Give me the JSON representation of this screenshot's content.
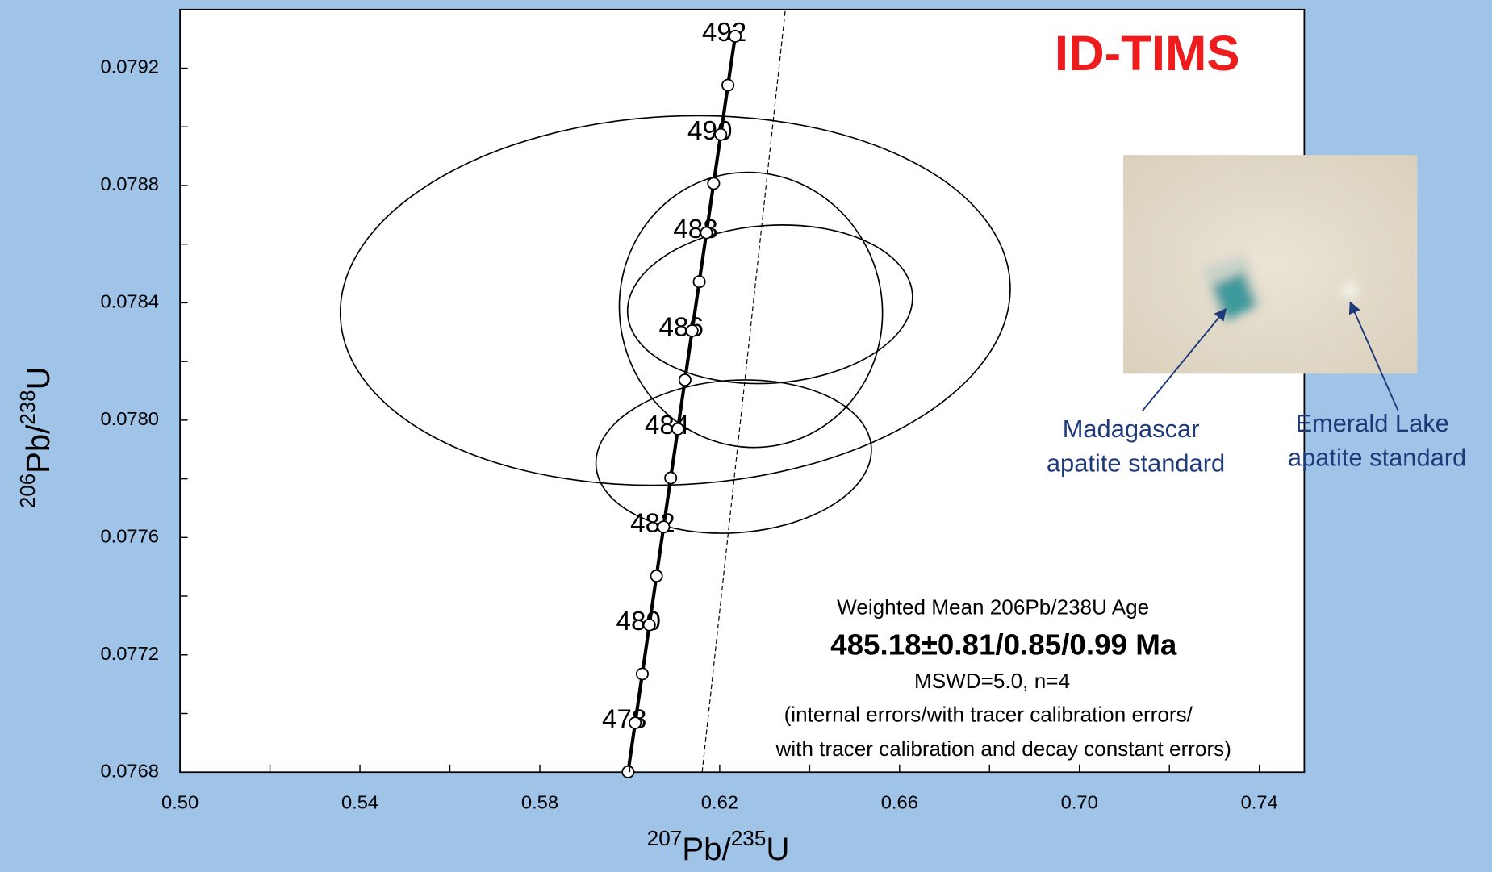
{
  "chart_data": {
    "type": "concordia",
    "title": "ID-TIMS",
    "title_color": "#ee1c1c",
    "x_label": [
      "207",
      "Pb/",
      "235",
      "U"
    ],
    "y_label": [
      "206",
      "Pb/",
      "238",
      "U"
    ],
    "xlim": [
      0.5,
      0.75
    ],
    "ylim": [
      0.0768,
      0.0794
    ],
    "xticks": [
      {
        "value": 0.5,
        "label": "0.50"
      },
      0.54,
      0.58,
      0.62,
      0.66,
      {
        "value": 0.7,
        "label": "0.70"
      },
      0.74
    ],
    "yticks": [
      0.0768,
      0.0772,
      0.0776,
      {
        "value": 0.078,
        "label": "0.0780"
      },
      0.0784,
      0.0788,
      0.0792
    ],
    "xminor": [
      0.52,
      0.56,
      0.6,
      0.64,
      0.68,
      0.72
    ],
    "yminor": [
      0.077,
      0.0774,
      0.0778,
      0.0782,
      0.0786,
      0.079
    ],
    "concordia": {
      "ages": [
        null,
        478,
        null,
        480,
        null,
        482,
        null,
        484,
        null,
        486,
        null,
        488,
        null,
        490,
        null,
        492
      ],
      "x": [
        0.59963,
        0.60121,
        0.60279,
        0.60436,
        0.60595,
        0.60753,
        0.60911,
        0.6107,
        0.61228,
        0.61387,
        0.61546,
        0.61706,
        0.61865,
        0.62024,
        0.62184,
        0.62344
      ],
      "y": [
        0.076801,
        0.076968,
        0.077135,
        0.077302,
        0.077469,
        0.077636,
        0.077803,
        0.07797,
        0.078137,
        0.078305,
        0.078472,
        0.078639,
        0.078807,
        0.078974,
        0.079142,
        0.079309
      ]
    },
    "dashed_line": {
      "x": [
        0.6161,
        0.6346
      ],
      "y": [
        0.0768,
        0.0794
      ]
    },
    "ellipses": [
      {
        "cx": 0.61012,
        "cy": 0.078408,
        "rx": 0.07455,
        "ry": 0.000628,
        "rotation": -3
      },
      {
        "cx": 0.62694,
        "cy": 0.078376,
        "rx": 0.02918,
        "ry": 0.00047,
        "rotation": -12
      },
      {
        "cx": 0.6312,
        "cy": 0.078395,
        "rx": 0.03174,
        "ry": 0.000269,
        "rotation": -4
      },
      {
        "cx": 0.62311,
        "cy": 0.077876,
        "rx": 0.03067,
        "ry": 0.00026,
        "rotation": -4
      }
    ],
    "annotation": {
      "heading": "Weighted Mean 206Pb/238U Age",
      "result": "485.18±0.81/0.85/0.99 Ma",
      "stats": "MSWD=5.0, n=4",
      "note1": "(internal errors/with tracer calibration errors/",
      "note2": "with tracer calibration and decay constant errors)"
    },
    "photo_labels": [
      {
        "line1": "Madagascar",
        "line2": "apatite standard"
      },
      {
        "line1": "Emerald Lake",
        "line2": "apatite standard"
      }
    ]
  }
}
